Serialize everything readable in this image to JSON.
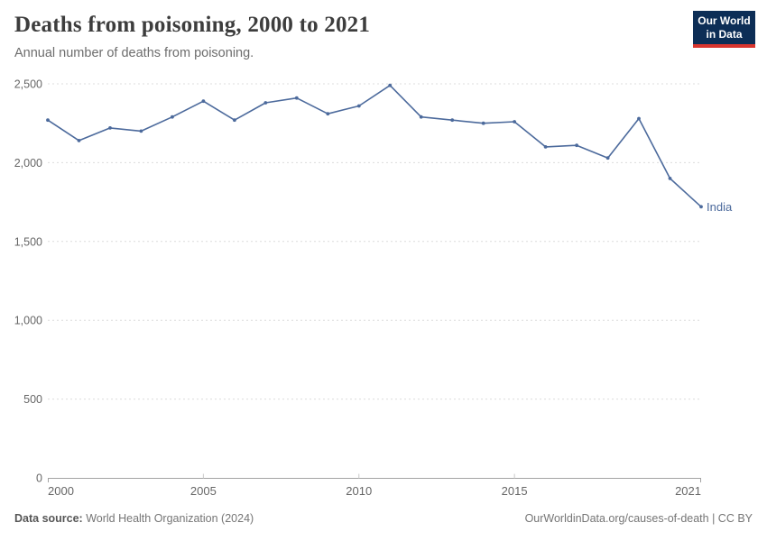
{
  "header": {
    "title": "Deaths from poisoning, 2000 to 2021",
    "subtitle": "Annual number of deaths from poisoning."
  },
  "logo": {
    "line1": "Our World",
    "line2": "in Data",
    "bg_color": "#0d2e56",
    "accent_color": "#d9352e"
  },
  "chart_data": {
    "type": "line",
    "title": "Deaths from poisoning, 2000 to 2021",
    "xlabel": "",
    "ylabel": "",
    "x": [
      2000,
      2001,
      2002,
      2003,
      2004,
      2005,
      2006,
      2007,
      2008,
      2009,
      2010,
      2011,
      2012,
      2013,
      2014,
      2015,
      2016,
      2017,
      2018,
      2019,
      2020,
      2021
    ],
    "series": [
      {
        "name": "India",
        "color": "#4c6a9c",
        "values": [
          2270,
          2140,
          2220,
          2200,
          2290,
          2390,
          2270,
          2380,
          2410,
          2310,
          2360,
          2490,
          2290,
          2270,
          2250,
          2260,
          2100,
          2110,
          2030,
          2280,
          1900,
          1720
        ]
      }
    ],
    "ylim": [
      0,
      2500
    ],
    "yticks": [
      {
        "value": 0,
        "label": "0"
      },
      {
        "value": 500,
        "label": "500"
      },
      {
        "value": 1000,
        "label": "1,000"
      },
      {
        "value": 1500,
        "label": "1,500"
      },
      {
        "value": 2000,
        "label": "2,000"
      },
      {
        "value": 2500,
        "label": "2,500"
      }
    ],
    "xticks": [
      {
        "value": 2000,
        "label": "2000"
      },
      {
        "value": 2005,
        "label": "2005"
      },
      {
        "value": 2010,
        "label": "2010"
      },
      {
        "value": 2015,
        "label": "2015"
      },
      {
        "value": 2021,
        "label": "2021"
      }
    ],
    "grid": "horizontal-dashed",
    "legend_position": "end-of-line-label",
    "colors": {
      "gridline": "#dcdcdc",
      "axis_line": "#a3a3a3",
      "tick": "#c9c9c9",
      "tick_label": "#666666"
    }
  },
  "footer": {
    "source_label": "Data source:",
    "source_text": " World Health Organization (2024)",
    "credit": "OurWorldinData.org/causes-of-death | CC BY"
  }
}
